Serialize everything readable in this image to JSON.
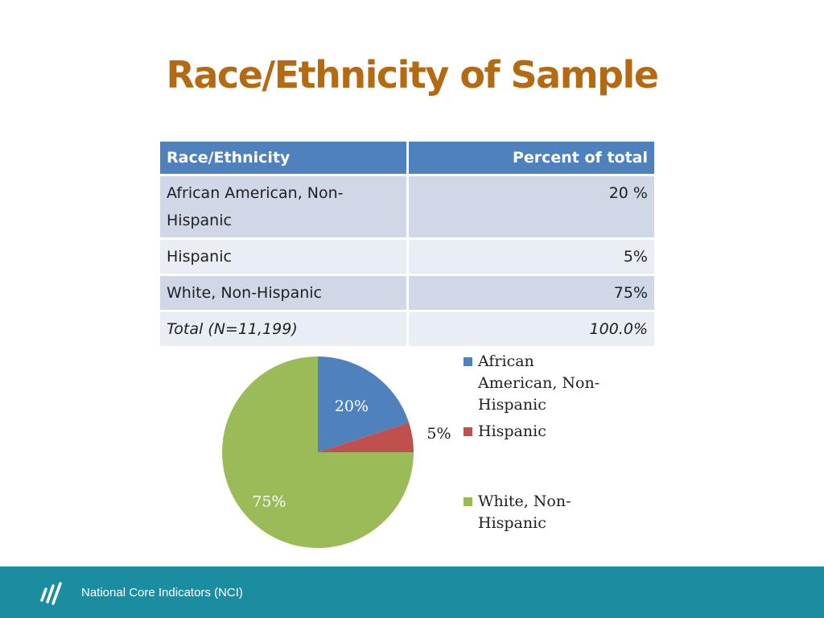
{
  "slide": {
    "title": "Race/Ethnicity of Sample"
  },
  "table": {
    "headers": [
      "Race/Ethnicity",
      "Percent of total"
    ],
    "rows": [
      {
        "label": "African American, Non-Hispanic",
        "value": "20 %"
      },
      {
        "label": "Hispanic",
        "value": "5%"
      },
      {
        "label": "White, Non-Hispanic",
        "value": "75%"
      },
      {
        "label": "Total (N=11,199)",
        "value": "100.0%"
      }
    ]
  },
  "chart_data": {
    "type": "pie",
    "title": "",
    "legend_position": "right",
    "start_angle_deg": 0,
    "direction": "clockwise",
    "slices": [
      {
        "name": "African American, Non-Hispanic",
        "value": 20,
        "label": "20%",
        "color": "#4f81bd",
        "label_color": "#ffffff"
      },
      {
        "name": "Hispanic",
        "value": 5,
        "label": "5%",
        "color": "#c0504d",
        "label_color": "#1f1f1f"
      },
      {
        "name": "White, Non-Hispanic",
        "value": 75,
        "label": "75%",
        "color": "#9bbb59",
        "label_color": "#ffffff"
      }
    ],
    "legend": [
      {
        "label": "African American, Non-Hispanic",
        "color": "#4f81bd"
      },
      {
        "label": "Hispanic",
        "color": "#c0504d"
      },
      {
        "label": "White, Non-Hispanic",
        "color": "#9bbb59"
      }
    ]
  },
  "footer": {
    "text": "National Core Indicators (NCI)",
    "background": "#1a8ea0",
    "logo_icon": "nci-logo-icon"
  },
  "colors": {
    "title": "#b36a12",
    "table_header": "#4f81bd",
    "table_row_odd": "#d0d8e8",
    "table_row_even": "#e9edf4"
  }
}
